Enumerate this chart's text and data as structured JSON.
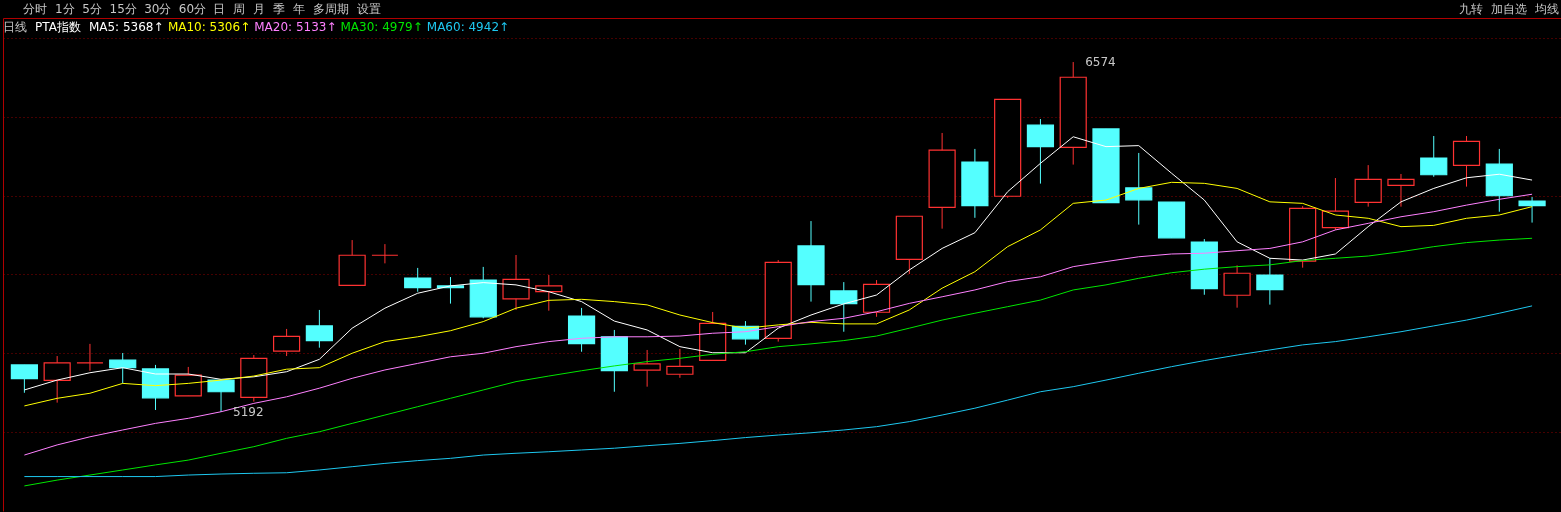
{
  "chart_data": {
    "type": "candlestick",
    "title": "日线",
    "subtitle": "PTA指数",
    "categories": [
      null,
      null,
      null,
      null,
      null,
      null,
      null,
      null,
      null,
      null,
      null,
      null,
      null,
      null,
      null,
      null,
      null,
      null,
      null,
      null,
      null,
      null,
      null,
      null,
      null,
      null,
      null,
      null,
      null,
      null,
      null,
      null,
      null,
      null,
      null,
      null,
      null,
      null,
      null,
      null,
      null,
      null,
      null,
      null,
      null,
      null,
      null
    ],
    "ohlc": [
      [
        5378,
        5378,
        5268,
        5324
      ],
      [
        5317,
        5413,
        5229,
        5386
      ],
      [
        5386,
        5461,
        5355,
        5386
      ],
      [
        5397,
        5425,
        5305,
        5367
      ],
      [
        5362,
        5378,
        5200,
        5248
      ],
      [
        5256,
        5370,
        5256,
        5338
      ],
      [
        5318,
        5318,
        5192,
        5272
      ],
      [
        5250,
        5417,
        5233,
        5404
      ],
      [
        5432,
        5520,
        5413,
        5491
      ],
      [
        5532,
        5595,
        5446,
        5474
      ],
      [
        5692,
        5871,
        5692,
        5811
      ],
      [
        5811,
        5855,
        5779,
        5811
      ],
      [
        5721,
        5761,
        5667,
        5683
      ],
      [
        5690,
        5725,
        5620,
        5683
      ],
      [
        5713,
        5765,
        5562,
        5568
      ],
      [
        5639,
        5812,
        5595,
        5716
      ],
      [
        5667,
        5733,
        5592,
        5690
      ],
      [
        5571,
        5603,
        5430,
        5462
      ],
      [
        5489,
        5516,
        5272,
        5355
      ],
      [
        5357,
        5437,
        5292,
        5382
      ],
      [
        5341,
        5441,
        5327,
        5372
      ],
      [
        5396,
        5587,
        5396,
        5542
      ],
      [
        5530,
        5551,
        5458,
        5481
      ],
      [
        5483,
        5792,
        5470,
        5783
      ],
      [
        5848,
        5946,
        5628,
        5695
      ],
      [
        5670,
        5705,
        5509,
        5620
      ],
      [
        5586,
        5713,
        5568,
        5696
      ],
      [
        5795,
        5965,
        5737,
        5965
      ],
      [
        6000,
        6294,
        5916,
        6226
      ],
      [
        6179,
        6231,
        5959,
        6007
      ],
      [
        6044,
        6427,
        6038,
        6427
      ],
      [
        6325,
        6349,
        6094,
        6240
      ],
      [
        6237,
        6574,
        6169,
        6514
      ],
      [
        6310,
        6310,
        6019,
        6019
      ],
      [
        6077,
        6215,
        5932,
        6030
      ],
      [
        6021,
        6021,
        5880,
        5880
      ],
      [
        5863,
        5875,
        5655,
        5679
      ],
      [
        5653,
        5771,
        5604,
        5740
      ],
      [
        5733,
        5799,
        5616,
        5675
      ],
      [
        5788,
        6005,
        5762,
        5996
      ],
      [
        5920,
        6116,
        5911,
        5985
      ],
      [
        6020,
        6167,
        6003,
        6111
      ],
      [
        6087,
        6132,
        6003,
        6111
      ],
      [
        6195,
        6282,
        6121,
        6129
      ],
      [
        6166,
        6282,
        6082,
        6261
      ],
      [
        6171,
        6231,
        5983,
        6046
      ],
      [
        6025,
        6041,
        5940,
        6007
      ]
    ],
    "series": [
      {
        "type": "line",
        "name": "MA5: 5368↑",
        "color": "#ffffff",
        "values": [
          5279,
          5318,
          5347,
          5367,
          5342,
          5342,
          5321,
          5331,
          5351,
          5400,
          5523,
          5602,
          5661,
          5690,
          5703,
          5694,
          5667,
          5628,
          5551,
          5516,
          5450,
          5426,
          5426,
          5523,
          5575,
          5619,
          5654,
          5753,
          5838,
          5900,
          6062,
          6174,
          6279,
          6240,
          6244,
          6135,
          6029,
          5864,
          5799,
          5792,
          5816,
          5924,
          6022,
          6075,
          6117,
          6131,
          6108
        ]
      },
      {
        "type": "line",
        "name": "MA10: 5306↑",
        "color": "#ffff00",
        "values": [
          5216,
          5246,
          5266,
          5305,
          5296,
          5305,
          5318,
          5334,
          5361,
          5367,
          5424,
          5470,
          5489,
          5513,
          5549,
          5602,
          5633,
          5637,
          5628,
          5615,
          5575,
          5545,
          5523,
          5536,
          5546,
          5540,
          5540,
          5595,
          5681,
          5746,
          5845,
          5911,
          6016,
          6029,
          6075,
          6099,
          6095,
          6075,
          6022,
          6016,
          5970,
          5957,
          5924,
          5929,
          5957,
          5970,
          6003
        ]
      },
      {
        "type": "line",
        "name": "MA20: 5133↑",
        "color": "#ff80ff",
        "values": [
          5022,
          5062,
          5094,
          5121,
          5147,
          5167,
          5193,
          5226,
          5252,
          5286,
          5325,
          5358,
          5384,
          5410,
          5424,
          5450,
          5470,
          5483,
          5489,
          5489,
          5492,
          5503,
          5509,
          5529,
          5549,
          5562,
          5588,
          5621,
          5647,
          5674,
          5707,
          5726,
          5766,
          5786,
          5805,
          5816,
          5819,
          5829,
          5838,
          5864,
          5911,
          5937,
          5963,
          5983,
          6009,
          6032,
          6052
        ]
      },
      {
        "type": "line",
        "name": "MA30: 4979↑",
        "color": "#00e600",
        "values": [
          4900,
          4923,
          4943,
          4963,
          4983,
          5002,
          5029,
          5055,
          5088,
          5114,
          5147,
          5180,
          5213,
          5246,
          5279,
          5312,
          5334,
          5355,
          5374,
          5391,
          5404,
          5420,
          5430,
          5450,
          5461,
          5474,
          5492,
          5523,
          5555,
          5582,
          5608,
          5634,
          5674,
          5694,
          5720,
          5742,
          5756,
          5766,
          5773,
          5790,
          5799,
          5808,
          5825,
          5845,
          5861,
          5871,
          5878
        ]
      },
      {
        "type": "line",
        "name": "MA60: 4942↑",
        "color": "#1ec8f0",
        "values": [
          4937,
          4937,
          4937,
          4937,
          4937,
          4943,
          4947,
          4950,
          4952,
          4963,
          4976,
          4989,
          5000,
          5009,
          5022,
          5029,
          5035,
          5042,
          5049,
          5059,
          5068,
          5079,
          5091,
          5101,
          5110,
          5121,
          5134,
          5154,
          5180,
          5207,
          5239,
          5272,
          5292,
          5318,
          5345,
          5371,
          5395,
          5417,
          5437,
          5457,
          5470,
          5489,
          5509,
          5532,
          5555,
          5582,
          5611
        ]
      }
    ],
    "ylim": [
      4801,
      6748
    ],
    "yticks": [
      {
        "value": 5112,
        "label": null
      },
      {
        "value": 5424,
        "label": null
      },
      {
        "value": 5736,
        "label": null
      },
      {
        "value": 6046,
        "label": null
      },
      {
        "value": 6358,
        "label": null
      },
      {
        "value": 6668,
        "label": null
      }
    ],
    "grid": "y",
    "legend": "top left",
    "annotations": [
      "分时",
      "1分",
      "5分",
      "15分",
      "30分",
      "60分",
      "日",
      "周",
      "月",
      "季",
      "年",
      "多周期",
      "设置",
      "九转",
      "加自选",
      "均线",
      "6574",
      "5192"
    ]
  }
}
